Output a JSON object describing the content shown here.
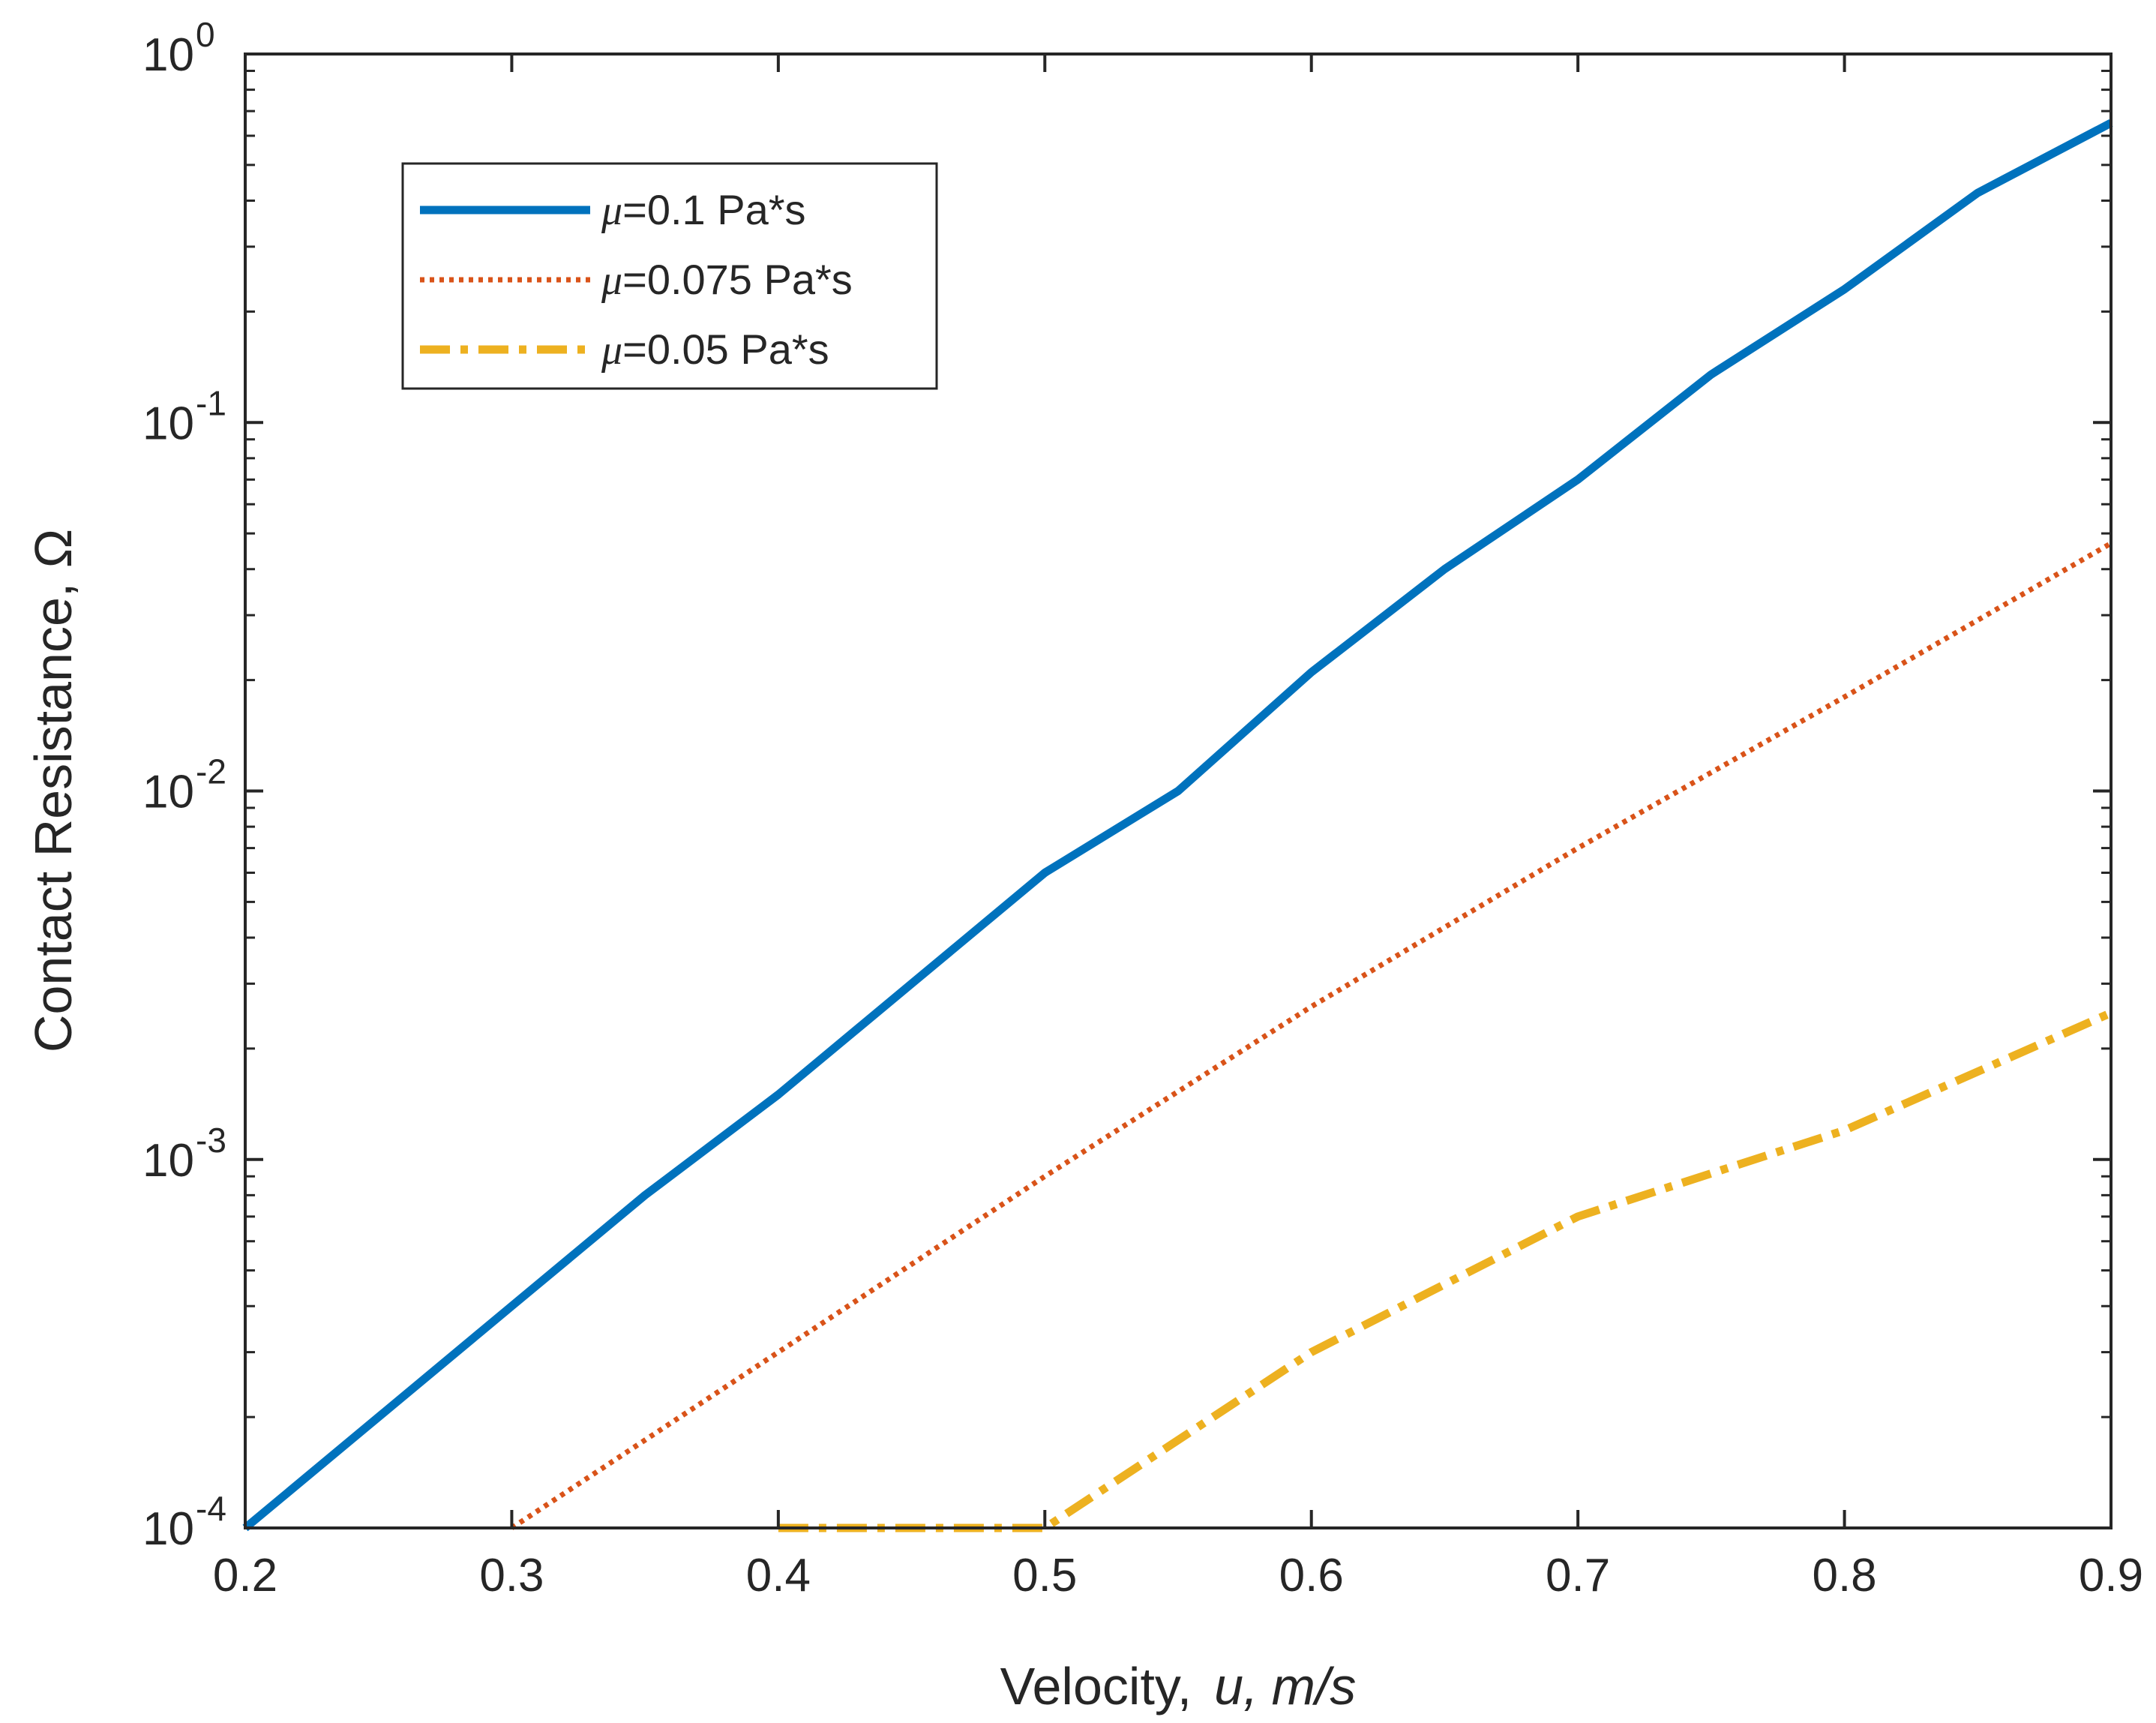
{
  "chart_data": {
    "type": "line",
    "title": "",
    "xlabel": "Velocity,",
    "xlabel_symbol": "u,",
    "xlabel_unit": "m/s",
    "ylabel": "Contact Resistance, Ω",
    "x_scale": "linear",
    "y_scale": "log",
    "xlim": [
      0.2,
      0.9
    ],
    "ylim": [
      0.0001,
      1
    ],
    "x_ticks": [
      0.2,
      0.3,
      0.4,
      0.5,
      0.6,
      0.7,
      0.8,
      0.9
    ],
    "x_tick_labels": [
      "0.2",
      "0.3",
      "0.4",
      "0.5",
      "0.6",
      "0.7",
      "0.8",
      "0.9"
    ],
    "y_ticks": [
      0.0001,
      0.001,
      0.01,
      0.1,
      1
    ],
    "y_tick_labels": [
      {
        "base": "10",
        "exp": "-4"
      },
      {
        "base": "10",
        "exp": "-3"
      },
      {
        "base": "10",
        "exp": "-2"
      },
      {
        "base": "10",
        "exp": "-1"
      },
      {
        "base": "10",
        "exp": "0"
      }
    ],
    "grid": false,
    "legend_position": "top-left",
    "series": [
      {
        "name": "μ=0.1 Pa*s",
        "legend_symbol": "μ",
        "legend_text": "=0.1 Pa*s",
        "style": "solid",
        "color": "#0072BD",
        "x": [
          0.2,
          0.25,
          0.3,
          0.35,
          0.4,
          0.45,
          0.5,
          0.55,
          0.6,
          0.65,
          0.7,
          0.75,
          0.8,
          0.85,
          0.9
        ],
        "y": [
          0.0001,
          0.0002,
          0.0004,
          0.0008,
          0.0015,
          0.003,
          0.006,
          0.01,
          0.021,
          0.04,
          0.07,
          0.135,
          0.23,
          0.42,
          0.65
        ]
      },
      {
        "name": "μ=0.075 Pa*s",
        "legend_symbol": "μ",
        "legend_text": "=0.075 Pa*s",
        "style": "dotted",
        "color": "#D95319",
        "x": [
          0.3,
          0.4,
          0.5,
          0.6,
          0.7,
          0.8,
          0.9
        ],
        "y": [
          0.0001,
          0.0003,
          0.0009,
          0.0026,
          0.007,
          0.018,
          0.047
        ]
      },
      {
        "name": "μ=0.05 Pa*s",
        "legend_symbol": "μ",
        "legend_text": "=0.05 Pa*s",
        "style": "dashdot",
        "color": "#EDB120",
        "x": [
          0.4,
          0.5,
          0.6,
          0.7,
          0.8,
          0.9
        ],
        "y": [
          0.0001,
          0.0001,
          0.0003,
          0.0007,
          0.0012,
          0.0025
        ]
      }
    ]
  }
}
